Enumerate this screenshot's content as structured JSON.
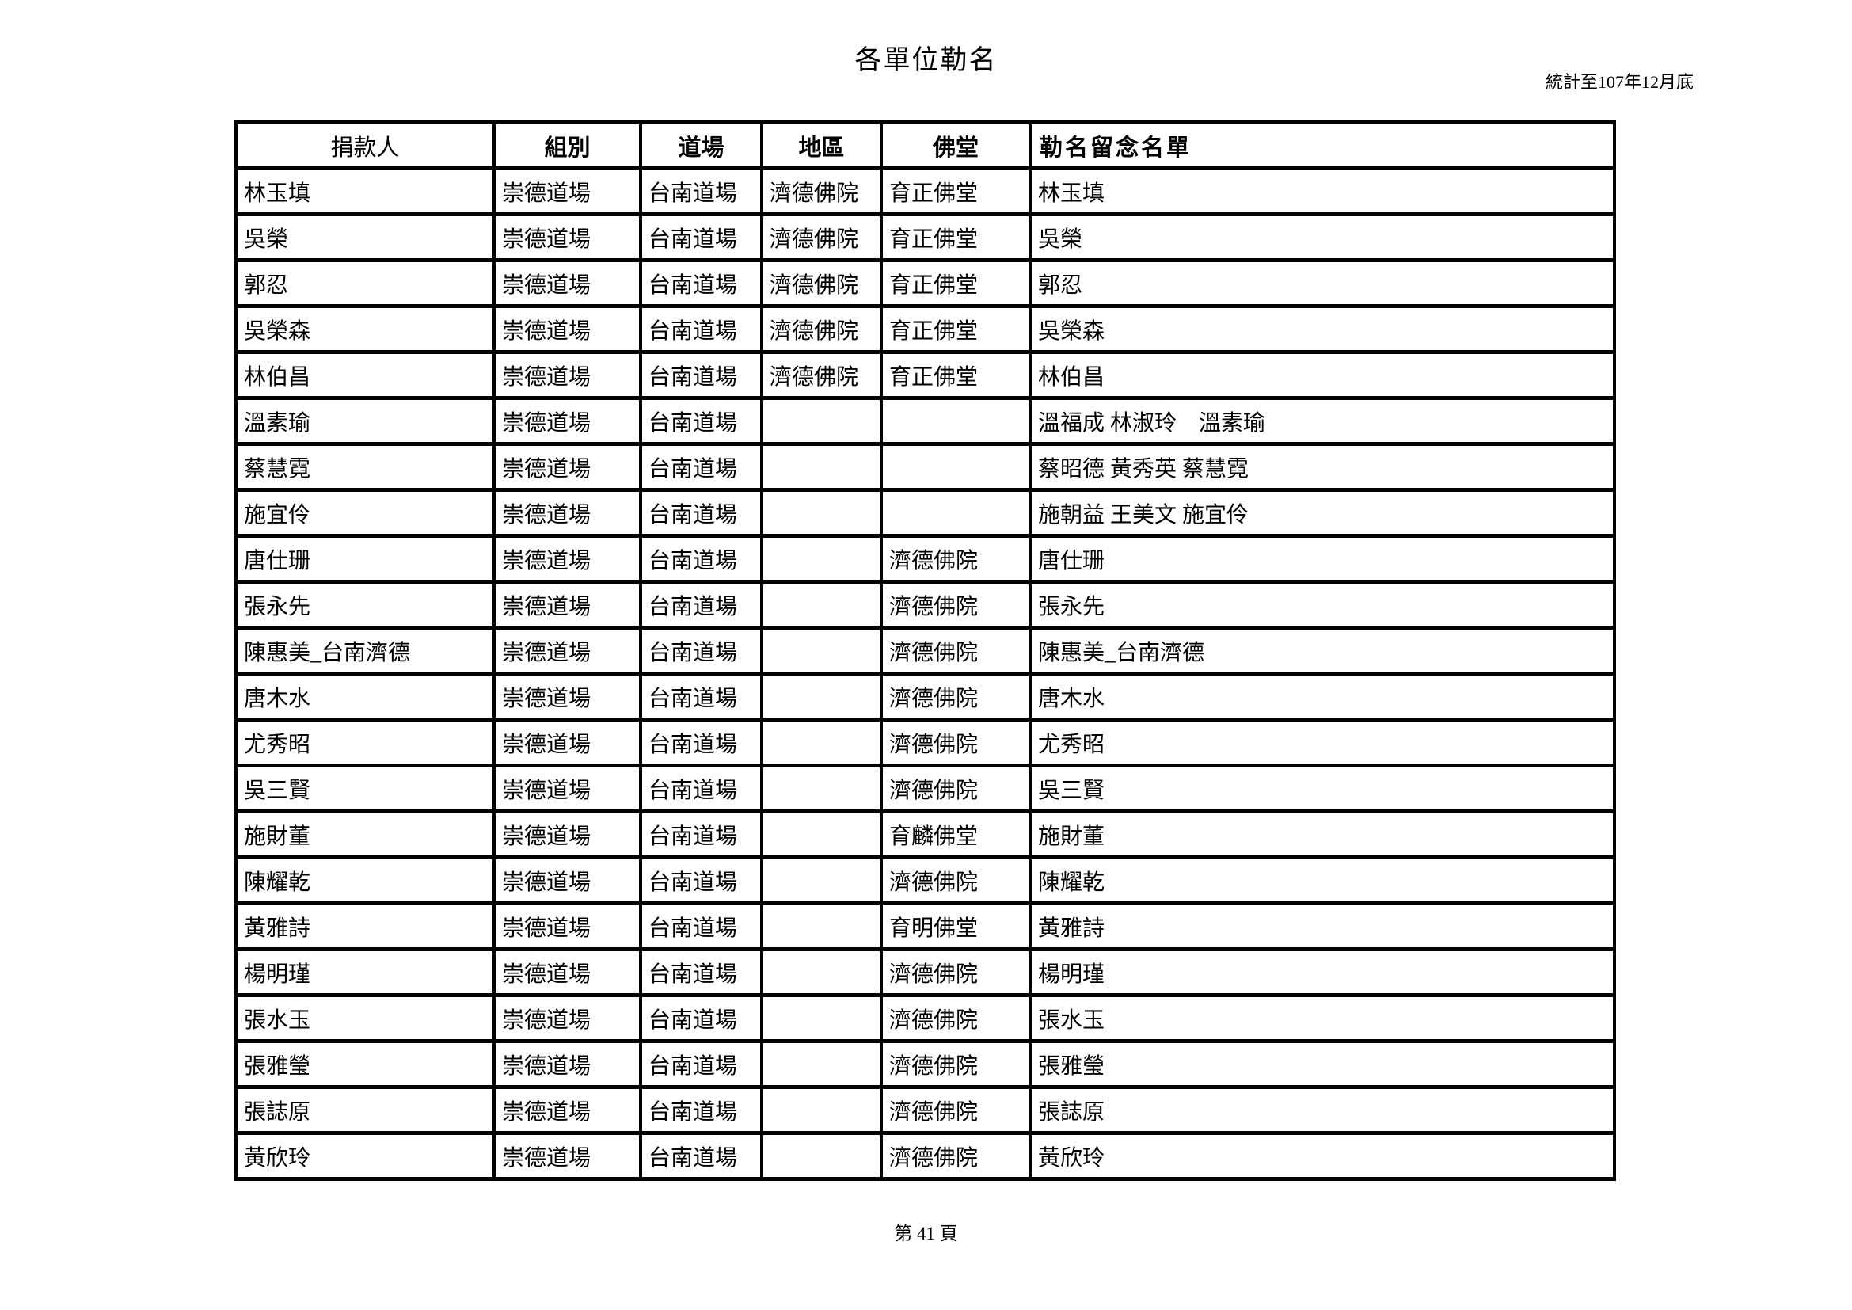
{
  "page": {
    "title": "各單位勒名",
    "note": "統計至107年12月底",
    "footer": "第 41 頁"
  },
  "colors": {
    "text": "#000000",
    "background": "#ffffff",
    "border": "#000000"
  },
  "table": {
    "headers": [
      "捐款人",
      "組別",
      "道場",
      "地區",
      "佛堂",
      "勒名留念名單"
    ],
    "rows": [
      [
        "林玉填",
        "崇德道場",
        "台南道場",
        "濟德佛院",
        "育正佛堂",
        "林玉填"
      ],
      [
        "吳榮",
        "崇德道場",
        "台南道場",
        "濟德佛院",
        "育正佛堂",
        "吳榮"
      ],
      [
        "郭忍",
        "崇德道場",
        "台南道場",
        "濟德佛院",
        "育正佛堂",
        "郭忍"
      ],
      [
        "吳榮森",
        "崇德道場",
        "台南道場",
        "濟德佛院",
        "育正佛堂",
        "吳榮森"
      ],
      [
        "林伯昌",
        "崇德道場",
        "台南道場",
        "濟德佛院",
        "育正佛堂",
        "林伯昌"
      ],
      [
        "溫素瑜",
        "崇德道場",
        "台南道場",
        "",
        "",
        "溫福成 林淑玲　溫素瑜"
      ],
      [
        "蔡慧霓",
        "崇德道場",
        "台南道場",
        "",
        "",
        "蔡昭德 黃秀英 蔡慧霓"
      ],
      [
        "施宜伶",
        "崇德道場",
        "台南道場",
        "",
        "",
        "施朝益 王美文 施宜伶"
      ],
      [
        "唐仕珊",
        "崇德道場",
        "台南道場",
        "",
        "濟德佛院",
        "唐仕珊"
      ],
      [
        "張永先",
        "崇德道場",
        "台南道場",
        "",
        "濟德佛院",
        "張永先"
      ],
      [
        "陳惠美_台南濟德",
        "崇德道場",
        "台南道場",
        "",
        "濟德佛院",
        "陳惠美_台南濟德"
      ],
      [
        "唐木水",
        "崇德道場",
        "台南道場",
        "",
        "濟德佛院",
        "唐木水"
      ],
      [
        "尤秀昭",
        "崇德道場",
        "台南道場",
        "",
        "濟德佛院",
        "尤秀昭"
      ],
      [
        "吳三賢",
        "崇德道場",
        "台南道場",
        "",
        "濟德佛院",
        "吳三賢"
      ],
      [
        "施財董",
        "崇德道場",
        "台南道場",
        "",
        "育麟佛堂",
        "施財董"
      ],
      [
        "陳耀乾",
        "崇德道場",
        "台南道場",
        "",
        "濟德佛院",
        "陳耀乾"
      ],
      [
        "黃雅詩",
        "崇德道場",
        "台南道場",
        "",
        "育明佛堂",
        "黃雅詩"
      ],
      [
        "楊明瑾",
        "崇德道場",
        "台南道場",
        "",
        "濟德佛院",
        "楊明瑾"
      ],
      [
        "張水玉",
        "崇德道場",
        "台南道場",
        "",
        "濟德佛院",
        "張水玉"
      ],
      [
        "張雅瑩",
        "崇德道場",
        "台南道場",
        "",
        "濟德佛院",
        "張雅瑩"
      ],
      [
        "張誌原",
        "崇德道場",
        "台南道場",
        "",
        "濟德佛院",
        "張誌原"
      ],
      [
        "黃欣玲",
        "崇德道場",
        "台南道場",
        "",
        "濟德佛院",
        "黃欣玲"
      ]
    ]
  }
}
